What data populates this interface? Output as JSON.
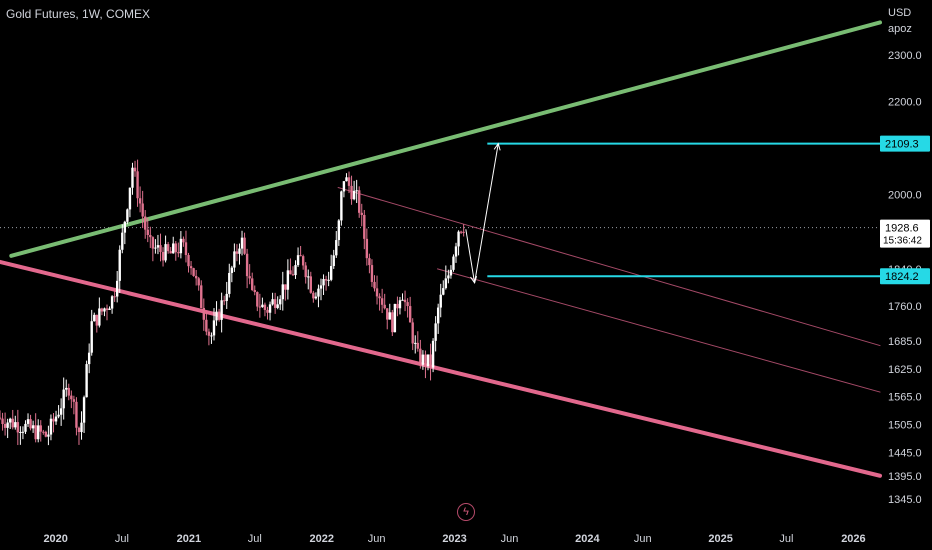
{
  "header": {
    "symbol_title": "Gold Futures, 1W, COMEX",
    "currency": "USD",
    "account": "apoz"
  },
  "logo": {
    "icon": "lightning-icon",
    "glyph": "ϟ"
  },
  "colors": {
    "background": "#000000",
    "candle_up": "#ffffff",
    "candle_down": "#e0738f",
    "green_trendline": "#80c77a",
    "pink_trendline": "#ef6e95",
    "channel_line": "#c2577a",
    "target_line": "#26d9e6",
    "price_line": "#9aa0a6"
  },
  "chart_data": {
    "type": "candlestick",
    "title": "Gold Futures, 1W, COMEX",
    "y_unit": "USD",
    "ylim": [
      1320,
      2420
    ],
    "y_ticks": [
      2300.0,
      2200.0,
      2109.3,
      2000.0,
      1928.6,
      1840.0,
      1824.2,
      1760.0,
      1685.0,
      1625.0,
      1565.0,
      1505.0,
      1445.0,
      1395.0,
      1345.0
    ],
    "y_tick_labels": [
      "2300.0",
      "2200.0",
      "2000.0",
      "1840.0",
      "1760.0",
      "1685.0",
      "1625.0",
      "1565.0",
      "1505.0",
      "1445.0",
      "1395.0",
      "1345.0"
    ],
    "x_tick_labels": [
      {
        "label": "2020",
        "date": "2020-01-01",
        "bold": true
      },
      {
        "label": "Jul",
        "date": "2020-07-01",
        "bold": false
      },
      {
        "label": "2021",
        "date": "2021-01-01",
        "bold": true
      },
      {
        "label": "Jul",
        "date": "2021-07-01",
        "bold": false
      },
      {
        "label": "2022",
        "date": "2022-01-01",
        "bold": true
      },
      {
        "label": "Jun",
        "date": "2022-06-01",
        "bold": false
      },
      {
        "label": "2023",
        "date": "2023-01-01",
        "bold": true
      },
      {
        "label": "Jun",
        "date": "2023-06-01",
        "bold": false
      },
      {
        "label": "2024",
        "date": "2024-01-01",
        "bold": true
      },
      {
        "label": "Jun",
        "date": "2024-06-01",
        "bold": false
      },
      {
        "label": "2025",
        "date": "2025-01-01",
        "bold": true
      },
      {
        "label": "Jul",
        "date": "2025-07-01",
        "bold": false
      },
      {
        "label": "2026",
        "date": "2026-01-01",
        "bold": true
      }
    ],
    "xlim": [
      "2019-08-01",
      "2026-03-15"
    ],
    "price_labels": {
      "current_price": "1928.6",
      "countdown": "15:36:42",
      "target_upper": "2109.3",
      "target_lower": "1824.2"
    },
    "current_price_value": 1928.6,
    "target_upper_value": 2109.3,
    "target_lower_value": 1824.2,
    "target_line_start": "2023-04-01",
    "candle_anchors": [
      [
        "2019-08-01",
        1520
      ],
      [
        "2019-10-01",
        1505
      ],
      [
        "2019-12-15",
        1480
      ],
      [
        "2020-02-15",
        1590
      ],
      [
        "2020-03-15",
        1480
      ],
      [
        "2020-04-15",
        1720
      ],
      [
        "2020-06-15",
        1780
      ],
      [
        "2020-08-06",
        2060
      ],
      [
        "2020-09-20",
        1890
      ],
      [
        "2020-11-15",
        1870
      ],
      [
        "2020-12-20",
        1890
      ],
      [
        "2021-01-15",
        1850
      ],
      [
        "2021-03-08",
        1690
      ],
      [
        "2021-04-15",
        1780
      ],
      [
        "2021-05-31",
        1910
      ],
      [
        "2021-07-01",
        1780
      ],
      [
        "2021-08-09",
        1750
      ],
      [
        "2021-09-15",
        1790
      ],
      [
        "2021-11-15",
        1865
      ],
      [
        "2021-12-15",
        1790
      ],
      [
        "2022-01-25",
        1820
      ],
      [
        "2022-02-20",
        1900
      ],
      [
        "2022-03-08",
        2040
      ],
      [
        "2022-04-18",
        1985
      ],
      [
        "2022-05-20",
        1840
      ],
      [
        "2022-07-20",
        1720
      ],
      [
        "2022-08-15",
        1800
      ],
      [
        "2022-09-28",
        1650
      ],
      [
        "2022-11-03",
        1635
      ],
      [
        "2022-11-25",
        1760
      ],
      [
        "2022-12-20",
        1820
      ],
      [
        "2023-01-20",
        1930
      ],
      [
        "2023-02-01",
        1935
      ]
    ],
    "trendlines": [
      {
        "name": "green_support",
        "color_key": "green_trendline",
        "from": [
          "2019-09-01",
          1868
        ],
        "to": [
          "2026-03-15",
          2370
        ],
        "width": 4
      },
      {
        "name": "pink_support",
        "color_key": "pink_trendline",
        "from": [
          "2019-08-01",
          1855
        ],
        "to": [
          "2026-03-15",
          1395
        ],
        "width": 4
      },
      {
        "name": "channel_top",
        "color_key": "channel_line",
        "from": [
          "2022-02-15",
          2015
        ],
        "to": [
          "2026-03-15",
          1675
        ],
        "width": 1
      },
      {
        "name": "channel_mid",
        "color_key": "channel_line",
        "from": [
          "2022-11-15",
          1840
        ],
        "to": [
          "2026-03-15",
          1575
        ],
        "width": 1
      }
    ],
    "projection_path": [
      [
        "2023-02-01",
        1925
      ],
      [
        "2023-02-25",
        1810
      ],
      [
        "2023-05-01",
        2109.3
      ]
    ],
    "grid": false
  }
}
